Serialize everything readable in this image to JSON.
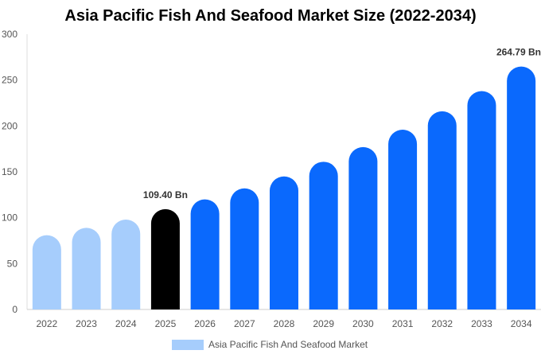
{
  "chart_data": {
    "type": "bar",
    "title": "Asia Pacific Fish And Seafood Market Size (2022-2034)",
    "categories": [
      "2022",
      "2023",
      "2024",
      "2025",
      "2026",
      "2027",
      "2028",
      "2029",
      "2030",
      "2031",
      "2032",
      "2033",
      "2034"
    ],
    "series": [
      {
        "name": "Asia Pacific Fish And Seafood Market",
        "values": [
          81,
          89,
          98,
          109.4,
          120,
          132,
          145,
          161,
          177,
          196,
          216,
          238,
          264.79
        ]
      }
    ],
    "ylim": [
      0,
      300
    ],
    "yticks": [
      0,
      50,
      100,
      150,
      200,
      250,
      300
    ],
    "data_labels": [
      {
        "category": "2025",
        "text": "109.40 Bn"
      },
      {
        "category": "2034",
        "text": "264.79 Bn"
      }
    ],
    "colors": {
      "historical": "#a6cdfc",
      "base_year": "#000000",
      "forecast": "#0a69fd",
      "legend_swatch": "#a6cdfc"
    },
    "legend_position": "bottom-center",
    "grid": false
  }
}
